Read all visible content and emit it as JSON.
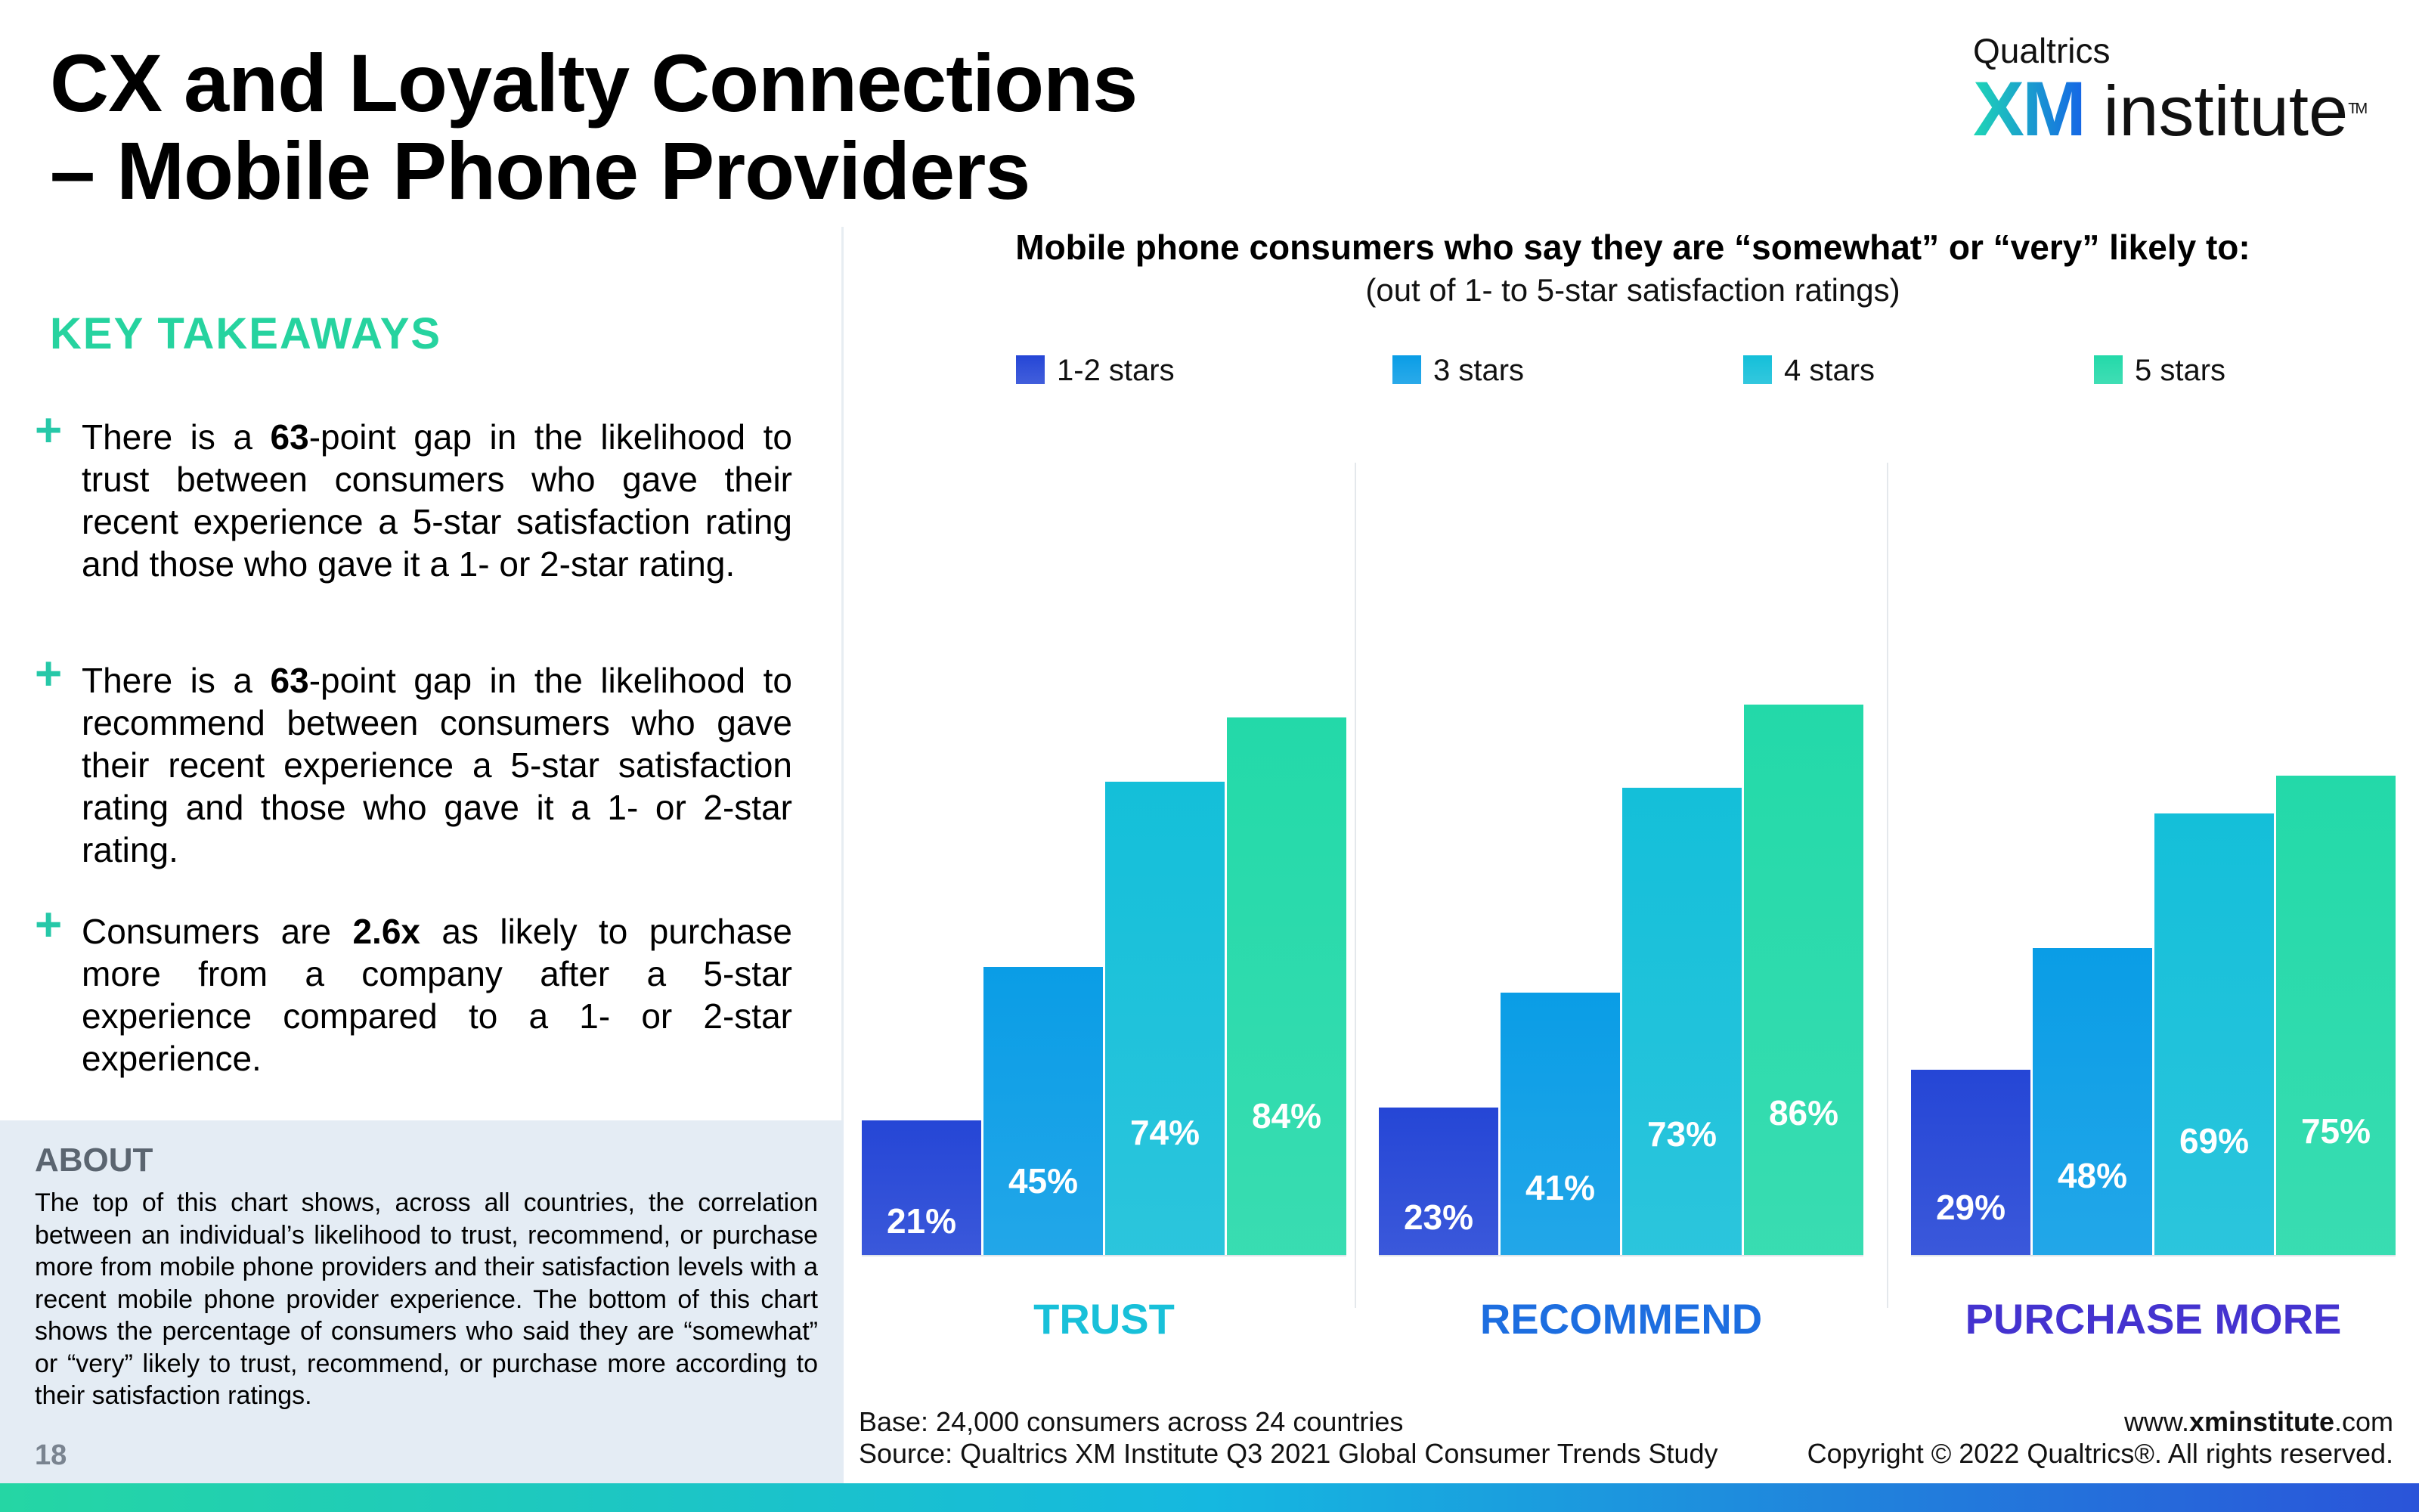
{
  "header": {
    "title_line1": "CX and Loyalty Connections",
    "title_line2": "– Mobile Phone Providers"
  },
  "logo": {
    "brand": "Qualtrics",
    "xm": "XM",
    "institute": "institute",
    "tm": "TM"
  },
  "takeaways": {
    "heading": "KEY TAKEAWAYS",
    "items": [
      {
        "pre": "There is a ",
        "bold": "63",
        "post": "-point gap in the likelihood to trust between consumers who gave their recent experience a 5-star satisfaction rating and those who gave it a 1- or 2-star rating."
      },
      {
        "pre": "There is a ",
        "bold": "63",
        "post": "-point gap in the likelihood to recommend between consumers who gave their recent experience a 5-star satisfaction rating and those who gave it a 1- or 2-star rating."
      },
      {
        "pre": "Consumers are ",
        "bold": "2.6x",
        "post": " as likely to purchase more from a company after a 5-star experience compared to a 1- or 2-star experience."
      }
    ]
  },
  "about": {
    "heading": "ABOUT",
    "text": "The top of this chart shows, across all countries, the correlation between an individual’s likelihood to trust, recommend, or purchase more from mobile phone providers and their satisfaction levels with a recent mobile phone provider experience. The bottom of this chart shows the percentage of consumers who said they are “somewhat” or “very” likely to trust, recommend, or purchase more according to their satisfaction ratings."
  },
  "page_number": "18",
  "colors": {
    "series": [
      "#2546d6",
      "#0a9de6",
      "#14bfd9",
      "#23d9a9"
    ],
    "category": [
      "#18c0d9",
      "#1d6ee0",
      "#4433cf"
    ]
  },
  "chart_data": {
    "type": "bar",
    "title": "Mobile phone consumers who say they are “somewhat” or “very” likely to:",
    "subtitle": "(out of 1- to 5-star satisfaction ratings)",
    "categories": [
      "TRUST",
      "RECOMMEND",
      "PURCHASE MORE"
    ],
    "series": [
      {
        "name": "1-2 stars",
        "values": [
          21,
          23,
          29
        ]
      },
      {
        "name": "3 stars",
        "values": [
          45,
          41,
          48
        ]
      },
      {
        "name": "4 stars",
        "values": [
          74,
          73,
          69
        ]
      },
      {
        "name": "5 stars",
        "values": [
          84,
          86,
          75
        ]
      }
    ],
    "value_suffix": "%",
    "ylim": [
      0,
      100
    ],
    "legend": "top"
  },
  "footer": {
    "base": "Base: 24,000 consumers across 24 countries",
    "source": "Source: Qualtrics XM Institute Q3 2021 Global Consumer Trends Study",
    "url_pre": "www.",
    "url_bold": "xminstitute",
    "url_post": ".com",
    "copyright": "Copyright © 2022 Qualtrics®. All rights reserved."
  }
}
